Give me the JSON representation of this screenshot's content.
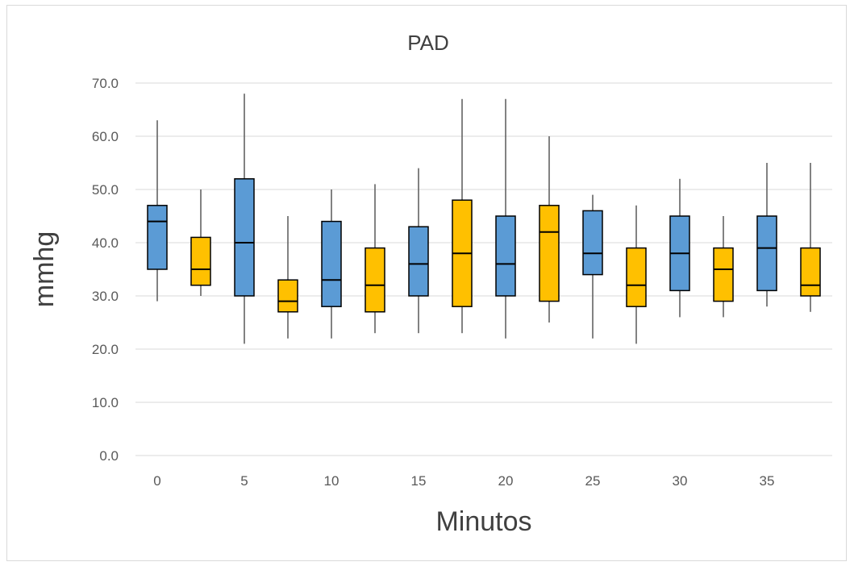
{
  "chart_data": {
    "type": "boxplot",
    "title": "PAD",
    "xlabel": "Minutos",
    "ylabel": "mmhg",
    "ylim": [
      0,
      70
    ],
    "y_ticks": [
      "0.0",
      "10.0",
      "20.0",
      "30.0",
      "40.0",
      "50.0",
      "60.0",
      "70.0"
    ],
    "x_tick_labels": [
      "0",
      "5",
      "10",
      "15",
      "20",
      "25",
      "30",
      "35"
    ],
    "grid": true,
    "legend": "none",
    "colors": {
      "blue": "#5b9bd5",
      "orange": "#ffc000",
      "outline": "#000000",
      "whisker": "#595959",
      "grid": "#d9d9d9"
    },
    "boxes": [
      {
        "color": "blue",
        "min": 29,
        "q1": 35,
        "median": 44,
        "q3": 47,
        "max": 63
      },
      {
        "color": "orange",
        "min": 30,
        "q1": 32,
        "median": 35,
        "q3": 41,
        "max": 50
      },
      {
        "color": "blue",
        "min": 21,
        "q1": 30,
        "median": 40,
        "q3": 52,
        "max": 68
      },
      {
        "color": "orange",
        "min": 22,
        "q1": 27,
        "median": 29,
        "q3": 33,
        "max": 45
      },
      {
        "color": "blue",
        "min": 22,
        "q1": 28,
        "median": 33,
        "q3": 44,
        "max": 50
      },
      {
        "color": "orange",
        "min": 23,
        "q1": 27,
        "median": 32,
        "q3": 39,
        "max": 51
      },
      {
        "color": "blue",
        "min": 23,
        "q1": 30,
        "median": 36,
        "q3": 43,
        "max": 54
      },
      {
        "color": "orange",
        "min": 23,
        "q1": 28,
        "median": 38,
        "q3": 48,
        "max": 67
      },
      {
        "color": "blue",
        "min": 22,
        "q1": 30,
        "median": 36,
        "q3": 45,
        "max": 67
      },
      {
        "color": "orange",
        "min": 25,
        "q1": 29,
        "median": 42,
        "q3": 47,
        "max": 60
      },
      {
        "color": "blue",
        "min": 22,
        "q1": 34,
        "median": 38,
        "q3": 46,
        "max": 49
      },
      {
        "color": "orange",
        "min": 21,
        "q1": 28,
        "median": 32,
        "q3": 39,
        "max": 47
      },
      {
        "color": "blue",
        "min": 26,
        "q1": 31,
        "median": 38,
        "q3": 45,
        "max": 52
      },
      {
        "color": "orange",
        "min": 26,
        "q1": 29,
        "median": 35,
        "q3": 39,
        "max": 45
      },
      {
        "color": "blue",
        "min": 28,
        "q1": 31,
        "median": 39,
        "q3": 45,
        "max": 55
      },
      {
        "color": "orange",
        "min": 27,
        "q1": 30,
        "median": 32,
        "q3": 39,
        "max": 55
      }
    ]
  }
}
